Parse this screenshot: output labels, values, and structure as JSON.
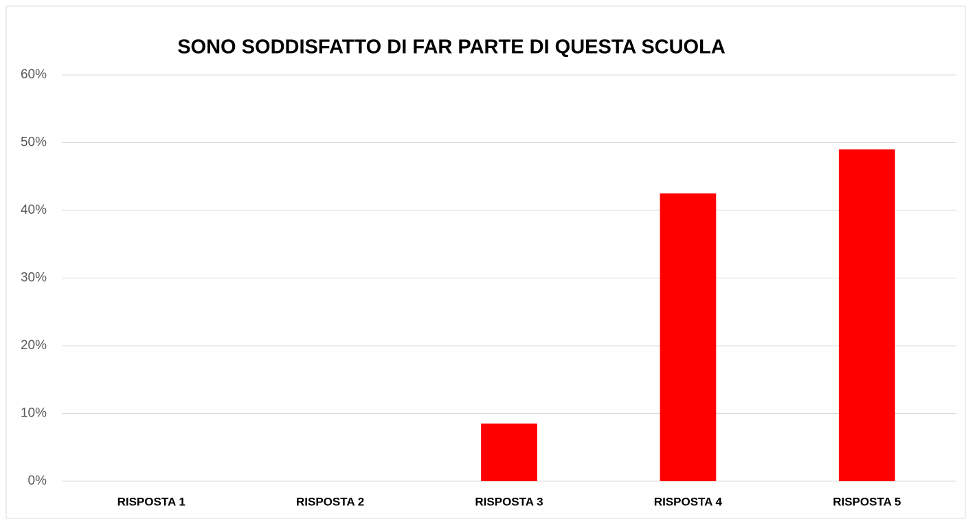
{
  "chart_data": {
    "type": "bar",
    "title": "SONO SODDISFATTO DI FAR PARTE DI QUESTA SCUOLA",
    "categories": [
      "RISPOSTA 1",
      "RISPOSTA 2",
      "RISPOSTA 3",
      "RISPOSTA 4",
      "RISPOSTA 5"
    ],
    "values": [
      0,
      0,
      8.5,
      42.5,
      49
    ],
    "color": "#ff0000",
    "ylim": [
      0,
      60
    ],
    "yticks": [
      {
        "value": 0,
        "label": "0%"
      },
      {
        "value": 10,
        "label": "10%"
      },
      {
        "value": 20,
        "label": "20%"
      },
      {
        "value": 30,
        "label": "30%"
      },
      {
        "value": 40,
        "label": "40%"
      },
      {
        "value": 50,
        "label": "50%"
      },
      {
        "value": 60,
        "label": "60%"
      }
    ],
    "grid": true
  }
}
